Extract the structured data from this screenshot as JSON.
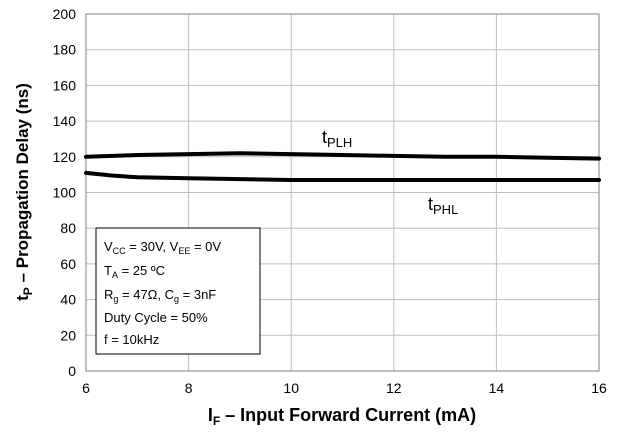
{
  "chart_data": {
    "type": "line",
    "xlabel": {
      "main": "I",
      "sub": "F",
      "rest": " – Input Forward Current (mA)"
    },
    "ylabel": {
      "main": "t",
      "sub": "P",
      "rest": " – Propagation Delay  (ns)"
    },
    "xlim": [
      6,
      16
    ],
    "ylim": [
      0,
      200
    ],
    "x_ticks": [
      "6",
      "8",
      "10",
      "12",
      "14",
      "16"
    ],
    "y_ticks": [
      "0",
      "20",
      "40",
      "60",
      "80",
      "100",
      "120",
      "140",
      "160",
      "180",
      "200"
    ],
    "grid": true,
    "series": [
      {
        "name": "tPLH",
        "label_main": "t",
        "label_sub": "PLH",
        "points": [
          [
            6,
            120
          ],
          [
            7,
            121
          ],
          [
            8,
            121.5
          ],
          [
            9,
            122
          ],
          [
            10,
            121.5
          ],
          [
            11,
            121
          ],
          [
            12,
            120.5
          ],
          [
            13,
            120
          ],
          [
            14,
            120
          ],
          [
            15,
            119.5
          ],
          [
            16,
            119
          ]
        ]
      },
      {
        "name": "tPHL",
        "label_main": "t",
        "label_sub": "PHL",
        "points": [
          [
            6,
            111
          ],
          [
            6.5,
            109.5
          ],
          [
            7,
            108.5
          ],
          [
            8,
            108
          ],
          [
            9,
            107.5
          ],
          [
            10,
            107
          ],
          [
            11,
            107
          ],
          [
            12,
            107
          ],
          [
            13,
            107
          ],
          [
            14,
            107
          ],
          [
            15,
            107
          ],
          [
            16,
            107
          ]
        ]
      }
    ],
    "conditions": {
      "line1": {
        "a": "V",
        "a_sub": "CC",
        "b": " = 30V, V",
        "b_sub": "EE",
        "c": " = 0V"
      },
      "line2": {
        "a": "T",
        "a_sub": "A",
        "b": " = 25 ºC"
      },
      "line3": {
        "a": "R",
        "a_sub": "g",
        "b": " = 47Ω, C",
        "b_sub": "g",
        "c": " = 3nF"
      },
      "line4": "Duty Cycle = 50%",
      "line5": "f = 10kHz"
    },
    "colors": {
      "line": "#000000",
      "grid": "#bfbfbf",
      "frame": "#7f7f7f"
    }
  }
}
